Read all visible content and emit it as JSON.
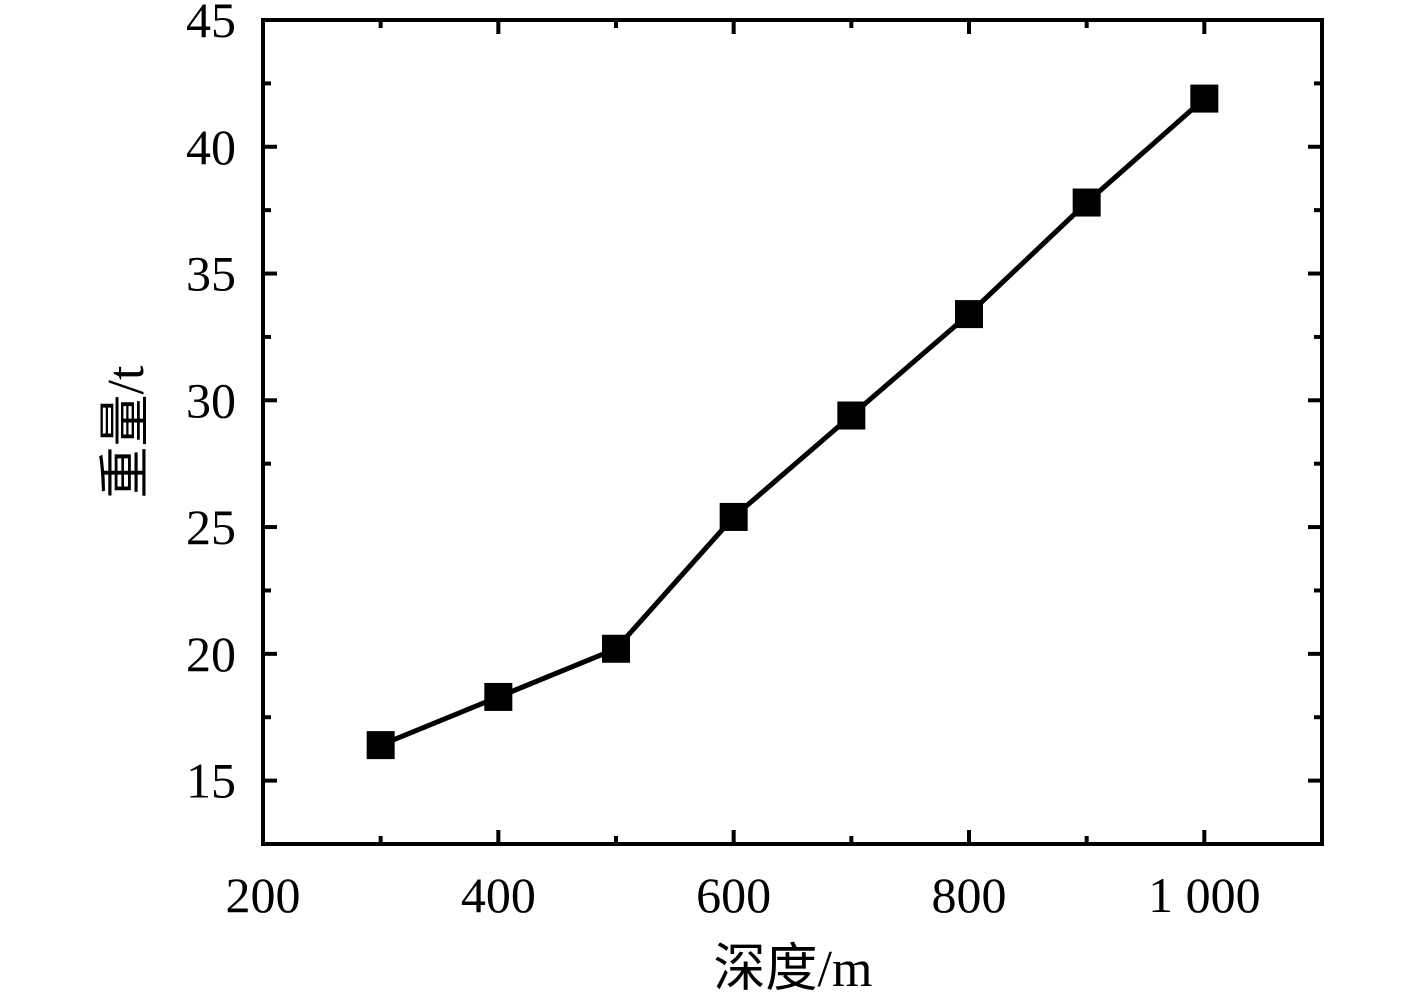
{
  "chart_data": {
    "type": "line",
    "xlabel": "深度/m",
    "ylabel": "重量/t",
    "xlim": [
      200,
      1100
    ],
    "ylim": [
      12.5,
      45
    ],
    "x_ticks": [
      200,
      400,
      600,
      800,
      1000
    ],
    "x_tick_labels": [
      "200",
      "400",
      "600",
      "800",
      "1 000"
    ],
    "y_ticks": [
      15,
      20,
      25,
      30,
      35,
      40,
      45
    ],
    "y_tick_labels": [
      "15",
      "20",
      "25",
      "30",
      "35",
      "40",
      "45"
    ],
    "grid": false,
    "series": [
      {
        "marker": "square",
        "color": "#000000",
        "x": [
          300,
          400,
          500,
          600,
          700,
          800,
          900,
          1000
        ],
        "y": [
          16.4,
          18.3,
          20.2,
          25.4,
          29.4,
          33.4,
          37.8,
          41.9
        ]
      }
    ]
  }
}
